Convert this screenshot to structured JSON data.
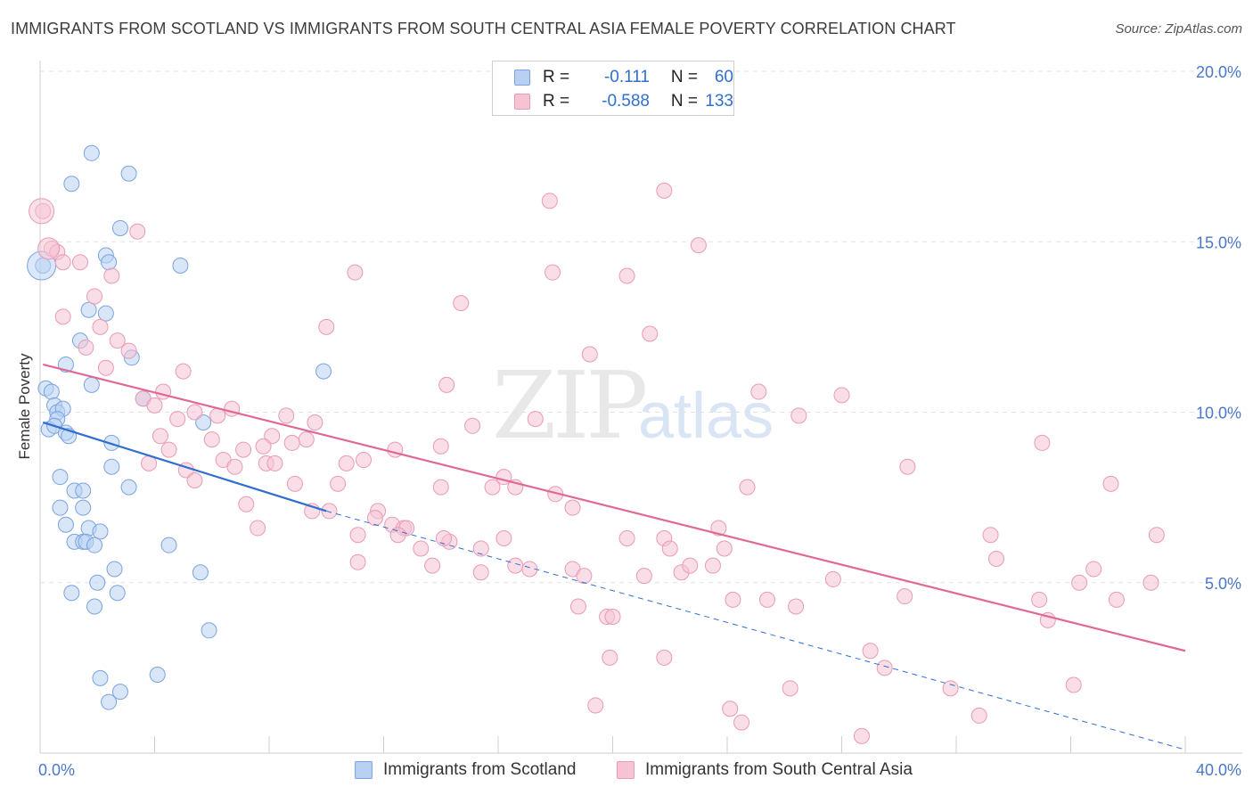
{
  "title": "IMMIGRANTS FROM SCOTLAND VS IMMIGRANTS FROM SOUTH CENTRAL ASIA FEMALE POVERTY CORRELATION CHART",
  "source": "Source: ZipAtlas.com",
  "watermark": {
    "zip": "ZIP",
    "atlas": "atlas"
  },
  "legend": {
    "scotland": {
      "r_label": "R =",
      "r_value": "-0.111",
      "n_label": "N =",
      "n_value": "60"
    },
    "sca": {
      "r_label": "R =",
      "r_value": "-0.588",
      "n_label": "N =",
      "n_value": "133"
    }
  },
  "bottom_legend": {
    "scotland": "Immigrants from Scotland",
    "sca": "Immigrants from South Central Asia"
  },
  "colors": {
    "scotland_fill": "#b8d1f3",
    "scotland_stroke": "#7aa3e0",
    "scotland_line": "#2e6fd0",
    "sca_fill": "#f6c3d3",
    "sca_stroke": "#e99ab5",
    "sca_line": "#e06895"
  },
  "chart_data": {
    "type": "scatter",
    "title": "IMMIGRANTS FROM SCOTLAND VS IMMIGRANTS FROM SOUTH CENTRAL ASIA FEMALE POVERTY CORRELATION CHART",
    "xlabel": "",
    "ylabel": "Female Poverty",
    "xlim": [
      0,
      40
    ],
    "ylim": [
      0,
      20
    ],
    "x_tick_labels": [
      "0.0%",
      "40.0%"
    ],
    "y_ticks": [
      5,
      10,
      15,
      20
    ],
    "y_tick_labels": [
      "5.0%",
      "10.0%",
      "15.0%",
      "20.0%"
    ],
    "grid": true,
    "series": [
      {
        "name": "Immigrants from Scotland",
        "r": -0.111,
        "n": 60,
        "trend_solid": [
          [
            0.1,
            9.7
          ],
          [
            10,
            7.1
          ]
        ],
        "trend_dashed": [
          [
            10,
            7.1
          ],
          [
            40,
            0.1
          ]
        ],
        "points": [
          [
            1.8,
            17.6
          ],
          [
            3.1,
            17.0
          ],
          [
            1.1,
            16.7
          ],
          [
            2.8,
            15.4
          ],
          [
            2.3,
            14.6
          ],
          [
            2.4,
            14.4
          ],
          [
            4.9,
            14.3
          ],
          [
            0.1,
            14.3
          ],
          [
            1.7,
            13.0
          ],
          [
            2.3,
            12.9
          ],
          [
            1.4,
            12.1
          ],
          [
            3.2,
            11.6
          ],
          [
            9.9,
            11.2
          ],
          [
            0.9,
            11.4
          ],
          [
            1.8,
            10.8
          ],
          [
            0.2,
            10.7
          ],
          [
            0.4,
            10.6
          ],
          [
            3.6,
            10.4
          ],
          [
            0.5,
            10.2
          ],
          [
            0.6,
            10.0
          ],
          [
            0.8,
            10.1
          ],
          [
            0.6,
            9.8
          ],
          [
            5.7,
            9.7
          ],
          [
            0.3,
            9.5
          ],
          [
            0.5,
            9.6
          ],
          [
            0.9,
            9.4
          ],
          [
            1.0,
            9.3
          ],
          [
            2.5,
            9.1
          ],
          [
            2.5,
            8.4
          ],
          [
            0.7,
            8.1
          ],
          [
            3.1,
            7.8
          ],
          [
            1.2,
            7.7
          ],
          [
            1.5,
            7.7
          ],
          [
            0.7,
            7.2
          ],
          [
            1.5,
            7.2
          ],
          [
            0.9,
            6.7
          ],
          [
            1.7,
            6.6
          ],
          [
            2.1,
            6.5
          ],
          [
            1.2,
            6.2
          ],
          [
            1.5,
            6.2
          ],
          [
            1.6,
            6.2
          ],
          [
            1.9,
            6.1
          ],
          [
            4.5,
            6.1
          ],
          [
            2.6,
            5.4
          ],
          [
            5.6,
            5.3
          ],
          [
            2.0,
            5.0
          ],
          [
            1.1,
            4.7
          ],
          [
            2.7,
            4.7
          ],
          [
            1.9,
            4.3
          ],
          [
            5.9,
            3.6
          ],
          [
            2.1,
            2.2
          ],
          [
            4.1,
            2.3
          ],
          [
            2.8,
            1.8
          ],
          [
            2.4,
            1.5
          ]
        ]
      },
      {
        "name": "Immigrants from South Central Asia",
        "r": -0.588,
        "n": 133,
        "trend": [
          [
            0.1,
            11.4
          ],
          [
            40,
            3.0
          ]
        ],
        "points": [
          [
            0.1,
            15.9
          ],
          [
            0.4,
            14.8
          ],
          [
            0.6,
            14.7
          ],
          [
            0.8,
            14.4
          ],
          [
            1.4,
            14.4
          ],
          [
            3.4,
            15.3
          ],
          [
            21.8,
            16.5
          ],
          [
            17.8,
            16.2
          ],
          [
            23.0,
            14.9
          ],
          [
            11.0,
            14.1
          ],
          [
            17.9,
            14.1
          ],
          [
            20.5,
            14.0
          ],
          [
            2.5,
            14.0
          ],
          [
            1.9,
            13.4
          ],
          [
            14.7,
            13.2
          ],
          [
            0.8,
            12.8
          ],
          [
            2.1,
            12.5
          ],
          [
            10.0,
            12.5
          ],
          [
            21.3,
            12.3
          ],
          [
            2.7,
            12.1
          ],
          [
            3.1,
            11.8
          ],
          [
            1.6,
            11.9
          ],
          [
            19.2,
            11.7
          ],
          [
            2.3,
            11.3
          ],
          [
            5.0,
            11.2
          ],
          [
            14.2,
            10.8
          ],
          [
            4.3,
            10.6
          ],
          [
            25.1,
            10.6
          ],
          [
            28.0,
            10.5
          ],
          [
            3.6,
            10.4
          ],
          [
            4.0,
            10.2
          ],
          [
            6.7,
            10.1
          ],
          [
            6.2,
            9.9
          ],
          [
            8.6,
            9.9
          ],
          [
            17.3,
            9.8
          ],
          [
            26.5,
            9.9
          ],
          [
            9.6,
            9.7
          ],
          [
            15.1,
            9.6
          ],
          [
            4.8,
            9.8
          ],
          [
            5.4,
            10.0
          ],
          [
            4.2,
            9.3
          ],
          [
            6.0,
            9.2
          ],
          [
            7.1,
            8.9
          ],
          [
            9.3,
            9.2
          ],
          [
            8.1,
            9.3
          ],
          [
            12.4,
            8.9
          ],
          [
            14.0,
            9.0
          ],
          [
            4.5,
            8.9
          ],
          [
            7.8,
            9.0
          ],
          [
            8.8,
            9.1
          ],
          [
            35.0,
            9.1
          ],
          [
            6.4,
            8.6
          ],
          [
            10.7,
            8.5
          ],
          [
            11.3,
            8.6
          ],
          [
            3.8,
            8.5
          ],
          [
            5.1,
            8.3
          ],
          [
            6.8,
            8.4
          ],
          [
            7.9,
            8.5
          ],
          [
            8.2,
            8.5
          ],
          [
            16.2,
            8.1
          ],
          [
            5.4,
            8.0
          ],
          [
            8.9,
            7.9
          ],
          [
            10.4,
            7.9
          ],
          [
            14.0,
            7.8
          ],
          [
            15.8,
            7.8
          ],
          [
            16.6,
            7.8
          ],
          [
            24.7,
            7.8
          ],
          [
            30.3,
            8.4
          ],
          [
            37.4,
            7.9
          ],
          [
            18.0,
            7.6
          ],
          [
            7.2,
            7.3
          ],
          [
            9.5,
            7.1
          ],
          [
            10.1,
            7.1
          ],
          [
            11.8,
            7.1
          ],
          [
            18.6,
            7.2
          ],
          [
            11.7,
            6.9
          ],
          [
            12.3,
            6.7
          ],
          [
            12.7,
            6.6
          ],
          [
            12.8,
            6.6
          ],
          [
            7.6,
            6.6
          ],
          [
            23.7,
            6.6
          ],
          [
            11.1,
            6.4
          ],
          [
            12.5,
            6.4
          ],
          [
            14.3,
            6.2
          ],
          [
            14.1,
            6.3
          ],
          [
            16.2,
            6.3
          ],
          [
            20.5,
            6.3
          ],
          [
            21.8,
            6.3
          ],
          [
            13.3,
            6.0
          ],
          [
            15.4,
            6.0
          ],
          [
            22.0,
            6.0
          ],
          [
            23.9,
            6.0
          ],
          [
            33.2,
            6.4
          ],
          [
            39.0,
            6.4
          ],
          [
            11.1,
            5.6
          ],
          [
            13.7,
            5.5
          ],
          [
            15.4,
            5.3
          ],
          [
            16.6,
            5.5
          ],
          [
            17.1,
            5.4
          ],
          [
            18.6,
            5.4
          ],
          [
            19.0,
            5.2
          ],
          [
            21.1,
            5.2
          ],
          [
            22.4,
            5.3
          ],
          [
            22.7,
            5.5
          ],
          [
            23.5,
            5.5
          ],
          [
            33.4,
            5.7
          ],
          [
            36.8,
            5.4
          ],
          [
            27.7,
            5.1
          ],
          [
            36.3,
            5.0
          ],
          [
            38.8,
            5.0
          ],
          [
            37.6,
            4.5
          ],
          [
            30.2,
            4.6
          ],
          [
            24.2,
            4.5
          ],
          [
            25.4,
            4.5
          ],
          [
            26.4,
            4.3
          ],
          [
            18.8,
            4.3
          ],
          [
            19.8,
            4.0
          ],
          [
            20.0,
            4.0
          ],
          [
            34.9,
            4.5
          ],
          [
            35.2,
            3.9
          ],
          [
            29.0,
            3.0
          ],
          [
            29.5,
            2.5
          ],
          [
            19.9,
            2.8
          ],
          [
            21.8,
            2.8
          ],
          [
            26.2,
            1.9
          ],
          [
            31.8,
            1.9
          ],
          [
            36.1,
            2.0
          ],
          [
            19.4,
            1.4
          ],
          [
            24.1,
            1.3
          ],
          [
            24.5,
            0.9
          ],
          [
            32.8,
            1.1
          ],
          [
            28.7,
            0.5
          ]
        ]
      }
    ]
  }
}
